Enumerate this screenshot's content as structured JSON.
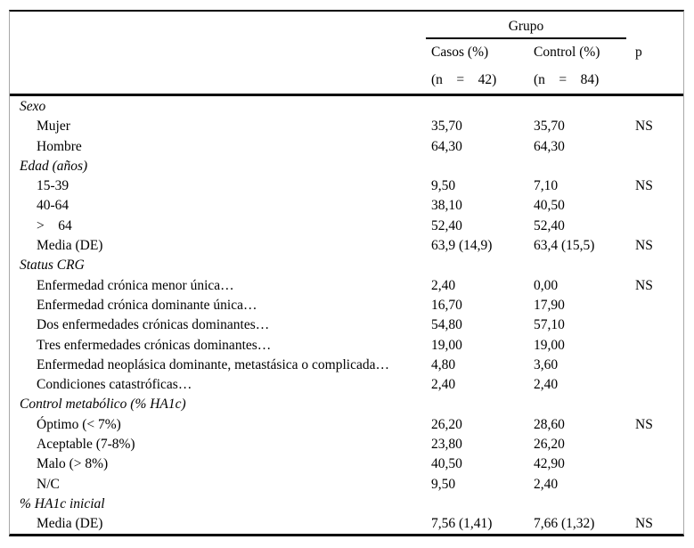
{
  "table": {
    "header": {
      "group_label": "Grupo",
      "col_casos": "Casos (%)",
      "col_casos_n": "(n    =    42)",
      "col_control": "Control (%)",
      "col_control_n": "(n    =    84)",
      "col_p": "p"
    },
    "sections": [
      {
        "title": "Sexo",
        "rows": [
          {
            "label": "Mujer",
            "casos": "35,70",
            "control": "35,70",
            "p": "NS"
          },
          {
            "label": "Hombre",
            "casos": "64,30",
            "control": "64,30",
            "p": ""
          }
        ]
      },
      {
        "title": "Edad (años)",
        "rows": [
          {
            "label": "15-39",
            "casos": "9,50",
            "control": "7,10",
            "p": "NS"
          },
          {
            "label": "40-64",
            "casos": "38,10",
            "control": "40,50",
            "p": ""
          },
          {
            "label": ">    64",
            "casos": "52,40",
            "control": "52,40",
            "p": ""
          },
          {
            "label": "Media (DE)",
            "casos": "63,9 (14,9)",
            "control": "63,4 (15,5)",
            "p": "NS"
          }
        ]
      },
      {
        "title": "Status CRG",
        "rows": [
          {
            "label": "Enfermedad crónica menor única…",
            "casos": "2,40",
            "control": "0,00",
            "p": "NS"
          },
          {
            "label": "Enfermedad crónica dominante única…",
            "casos": "16,70",
            "control": "17,90",
            "p": ""
          },
          {
            "label": "Dos enfermedades crónicas dominantes…",
            "casos": "54,80",
            "control": "57,10",
            "p": ""
          },
          {
            "label": "Tres enfermedades crónicas dominantes…",
            "casos": "19,00",
            "control": "19,00",
            "p": ""
          },
          {
            "label": "Enfermedad neoplásica dominante, metastásica o complicada…",
            "casos": "4,80",
            "control": "3,60",
            "p": ""
          },
          {
            "label": "Condiciones catastróficas…",
            "casos": "2,40",
            "control": "2,40",
            "p": ""
          }
        ]
      },
      {
        "title": "Control metabólico (% HA1c)",
        "rows": [
          {
            "label": "Óptimo (< 7%)",
            "casos": "26,20",
            "control": "28,60",
            "p": "NS"
          },
          {
            "label": "Aceptable (7-8%)",
            "casos": "23,80",
            "control": "26,20",
            "p": ""
          },
          {
            "label": "Malo (> 8%)",
            "casos": "40,50",
            "control": "42,90",
            "p": ""
          },
          {
            "label": "N/C",
            "casos": "9,50",
            "control": "2,40",
            "p": ""
          }
        ]
      },
      {
        "title": "% HA1c inicial",
        "rows": [
          {
            "label": "Media (DE)",
            "casos": "7,56 (1,41)",
            "control": "7,66 (1,32)",
            "p": "NS"
          }
        ]
      }
    ]
  }
}
